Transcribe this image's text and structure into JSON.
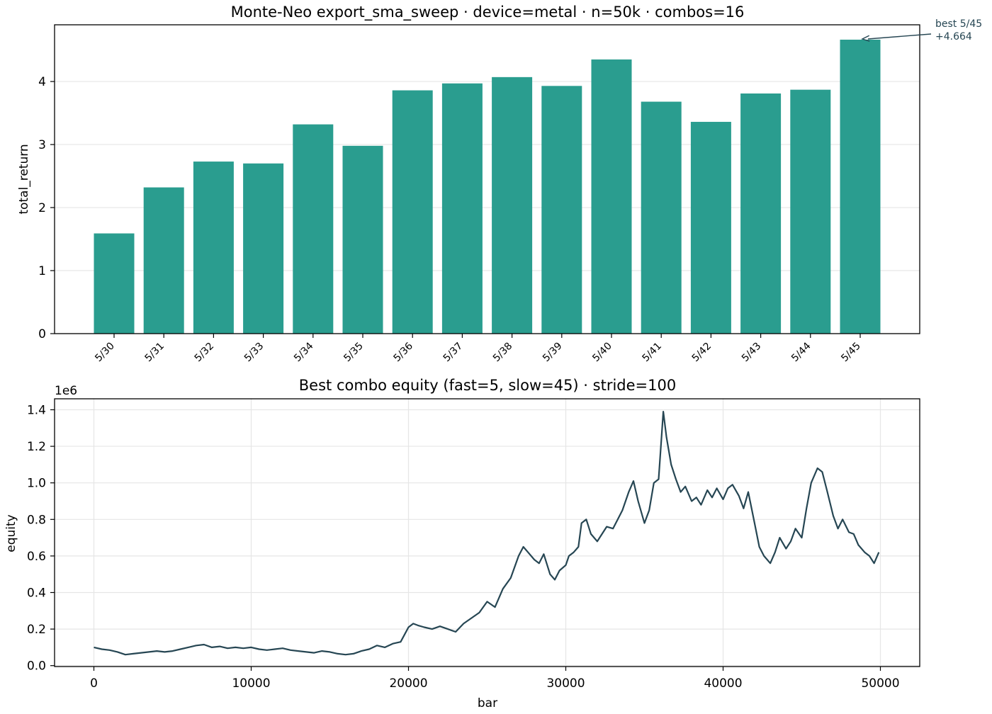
{
  "chart_data": [
    {
      "type": "bar",
      "title": "Monte-Neo export_sma_sweep · device=metal · n=50k · combos=16",
      "xlabel": "",
      "ylabel": "total_return",
      "categories": [
        "5/30",
        "5/31",
        "5/32",
        "5/33",
        "5/34",
        "5/35",
        "5/36",
        "5/37",
        "5/38",
        "5/39",
        "5/40",
        "5/41",
        "5/42",
        "5/43",
        "5/44",
        "5/45"
      ],
      "values": [
        1.59,
        2.32,
        2.73,
        2.7,
        3.32,
        2.98,
        3.86,
        3.97,
        4.07,
        3.93,
        4.35,
        3.68,
        3.36,
        3.81,
        3.87,
        4.664
      ],
      "ylim": [
        0,
        4.9
      ],
      "yticks": [
        "0",
        "1",
        "2",
        "3",
        "4"
      ],
      "grid": "y",
      "color": "#2a9d8f",
      "annotation": {
        "lines": [
          "best 5/45",
          "+4.664"
        ],
        "target_category": "5/45",
        "target_value": 4.664,
        "color": "#264653"
      }
    },
    {
      "type": "line",
      "title": "Best combo equity (fast=5, slow=45) · stride=100",
      "xlabel": "bar",
      "ylabel": "equity",
      "offset_label": "1e6",
      "xlim": [
        -2500,
        52500
      ],
      "ylim": [
        -0.005,
        1.46
      ],
      "xticks": [
        "0",
        "10000",
        "20000",
        "30000",
        "40000",
        "50000"
      ],
      "yticks": [
        "0.0",
        "0.2",
        "0.4",
        "0.6",
        "0.8",
        "1.0",
        "1.2",
        "1.4"
      ],
      "grid": "both",
      "color": "#264653",
      "series": [
        {
          "x": [
            0,
            500,
            1000,
            1500,
            2000,
            2500,
            3000,
            3500,
            4000,
            4500,
            5000,
            5500,
            6000,
            6500,
            7000,
            7500,
            8000,
            8500,
            9000,
            9500,
            10000,
            10500,
            11000,
            11500,
            12000,
            12500,
            13000,
            13500,
            14000,
            14500,
            15000,
            15500,
            16000,
            16500,
            17000,
            17500,
            18000,
            18500,
            19000,
            19500,
            20000,
            20300,
            20600,
            21000,
            21500,
            22000,
            22500,
            23000,
            23500,
            24000,
            24500,
            25000,
            25500,
            26000,
            26500,
            27000,
            27300,
            27600,
            28000,
            28300,
            28600,
            29000,
            29300,
            29600,
            30000,
            30200,
            30500,
            30800,
            31000,
            31300,
            31600,
            32000,
            32300,
            32600,
            33000,
            33300,
            33600,
            34000,
            34300,
            34600,
            35000,
            35300,
            35600,
            35900,
            36200,
            36400,
            36700,
            37000,
            37300,
            37600,
            38000,
            38300,
            38600,
            39000,
            39300,
            39600,
            40000,
            40300,
            40600,
            41000,
            41300,
            41600,
            42000,
            42300,
            42600,
            43000,
            43300,
            43600,
            44000,
            44300,
            44600,
            45000,
            45300,
            45600,
            46000,
            46300,
            46600,
            47000,
            47300,
            47600,
            48000,
            48300,
            48600,
            49000,
            49300,
            49600,
            49900
          ],
          "y": [
            0.1,
            0.09,
            0.085,
            0.075,
            0.06,
            0.065,
            0.07,
            0.075,
            0.08,
            0.075,
            0.08,
            0.09,
            0.1,
            0.11,
            0.115,
            0.1,
            0.105,
            0.095,
            0.1,
            0.095,
            0.1,
            0.09,
            0.085,
            0.09,
            0.095,
            0.085,
            0.08,
            0.075,
            0.07,
            0.08,
            0.075,
            0.065,
            0.06,
            0.065,
            0.08,
            0.09,
            0.11,
            0.1,
            0.12,
            0.13,
            0.21,
            0.23,
            0.22,
            0.21,
            0.2,
            0.215,
            0.2,
            0.185,
            0.23,
            0.26,
            0.29,
            0.35,
            0.32,
            0.42,
            0.48,
            0.6,
            0.65,
            0.62,
            0.58,
            0.56,
            0.61,
            0.5,
            0.47,
            0.52,
            0.55,
            0.6,
            0.62,
            0.65,
            0.78,
            0.8,
            0.72,
            0.68,
            0.72,
            0.76,
            0.75,
            0.8,
            0.85,
            0.95,
            1.01,
            0.9,
            0.78,
            0.85,
            1.0,
            1.02,
            1.39,
            1.25,
            1.1,
            1.02,
            0.95,
            0.98,
            0.9,
            0.92,
            0.88,
            0.96,
            0.92,
            0.97,
            0.91,
            0.97,
            0.99,
            0.93,
            0.86,
            0.95,
            0.78,
            0.65,
            0.6,
            0.56,
            0.62,
            0.7,
            0.64,
            0.68,
            0.75,
            0.7,
            0.86,
            1.0,
            1.08,
            1.06,
            0.96,
            0.82,
            0.75,
            0.8,
            0.73,
            0.72,
            0.66,
            0.62,
            0.6,
            0.56,
            0.62
          ]
        }
      ]
    }
  ]
}
